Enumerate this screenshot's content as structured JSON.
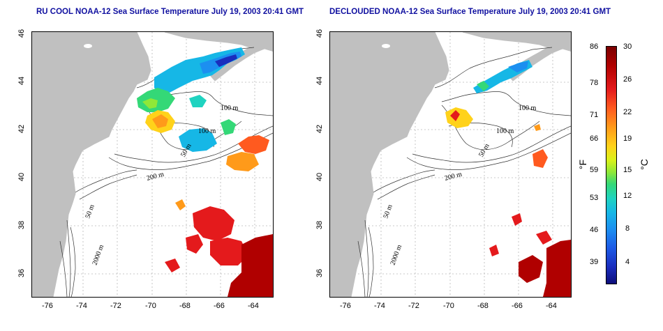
{
  "titles": {
    "left": "RU COOL NOAA-12 Sea Surface Temperature July 19, 2003 20:41 GMT",
    "right": "DECLOUDED NOAA-12 Sea Surface Temperature July 19, 2003 20:41 GMT"
  },
  "axes": {
    "x_ticks": [
      "-76",
      "-74",
      "-72",
      "-70",
      "-68",
      "-66",
      "-64"
    ],
    "y_ticks": [
      "46",
      "44",
      "42",
      "40",
      "38",
      "36"
    ],
    "lon_range": [
      -77,
      -63
    ],
    "lat_range": [
      35,
      46
    ]
  },
  "contour_labels": [
    "100 m",
    "100 m",
    "50 m",
    "200 m",
    "50 m",
    "2000 m"
  ],
  "colorbar": {
    "fahrenheit_ticks": [
      "86",
      "78",
      "71",
      "66",
      "59",
      "53",
      "46",
      "39"
    ],
    "celsius_ticks": [
      "30",
      "26",
      "22",
      "19",
      "15",
      "12",
      "8",
      "4"
    ],
    "fahrenheit_unit": "°F",
    "celsius_unit": "°C",
    "colors": {
      "hot": "#b00000",
      "warm": "#ff9a1a",
      "mid": "#8fe838",
      "cool": "#16b7e6",
      "cold": "#0d0e7a"
    }
  },
  "colors": {
    "land": "#c0c0c0",
    "ocean": "#ffffff",
    "title": "#1010a0",
    "grid": "#b8b8b8"
  }
}
